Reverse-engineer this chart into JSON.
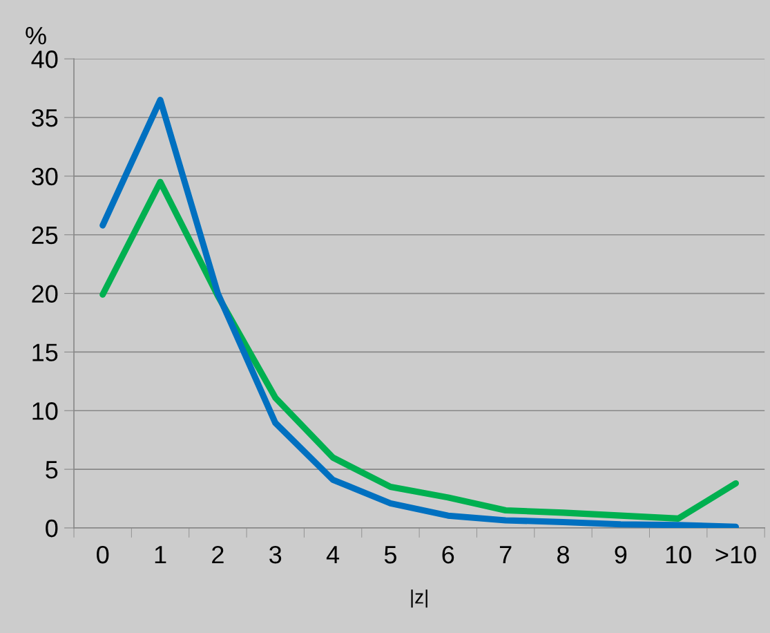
{
  "chart_data": {
    "type": "line",
    "ylabel": "%",
    "xlabel": "|z|",
    "categories": [
      "0",
      "1",
      "2",
      "3",
      "4",
      "5",
      "6",
      "7",
      "8",
      "9",
      "10",
      ">10"
    ],
    "series": [
      {
        "color": "#00b050",
        "values": [
          19.9,
          29.5,
          19.8,
          11.1,
          6.0,
          3.5,
          2.6,
          1.5,
          1.3,
          1.05,
          0.8,
          3.8
        ]
      },
      {
        "color": "#0070c0",
        "values": [
          25.8,
          36.5,
          20.0,
          8.95,
          4.1,
          2.1,
          1.05,
          0.65,
          0.5,
          0.3,
          0.25,
          0.1
        ]
      }
    ],
    "ylim": [
      0,
      40
    ],
    "yticks": [
      0,
      5,
      10,
      15,
      20,
      25,
      30,
      35,
      40
    ],
    "grid": "y",
    "marker": "none",
    "line_style": "solid"
  }
}
